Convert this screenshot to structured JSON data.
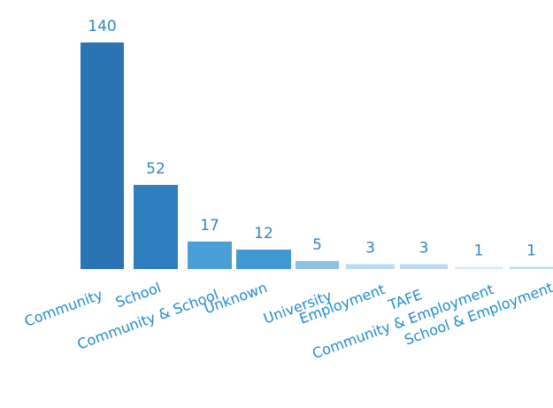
{
  "chart_data": {
    "type": "bar",
    "title": "",
    "xlabel": "",
    "ylabel": "",
    "grid": false,
    "legend": "none",
    "ylim": [
      0,
      140
    ],
    "categories": [
      "Community",
      "School",
      "Community & School",
      "Unknown",
      "University",
      "Employment",
      "TAFE",
      "Community & Employment",
      "School & Employment"
    ],
    "values": [
      140,
      52,
      17,
      12,
      5,
      3,
      3,
      1,
      1
    ],
    "value_labels": [
      "140",
      "52",
      "17",
      "12",
      "5",
      "3",
      "3",
      "1",
      "1"
    ],
    "colors": [
      "#2a74b4",
      "#2f7fbf",
      "#4aa0d5",
      "#4199d2",
      "#8fc0e3",
      "#bcd9ef",
      "#bcd9ef",
      "#d8e8f4",
      "#bcd9ef"
    ],
    "label_color": "#2f86c4"
  }
}
